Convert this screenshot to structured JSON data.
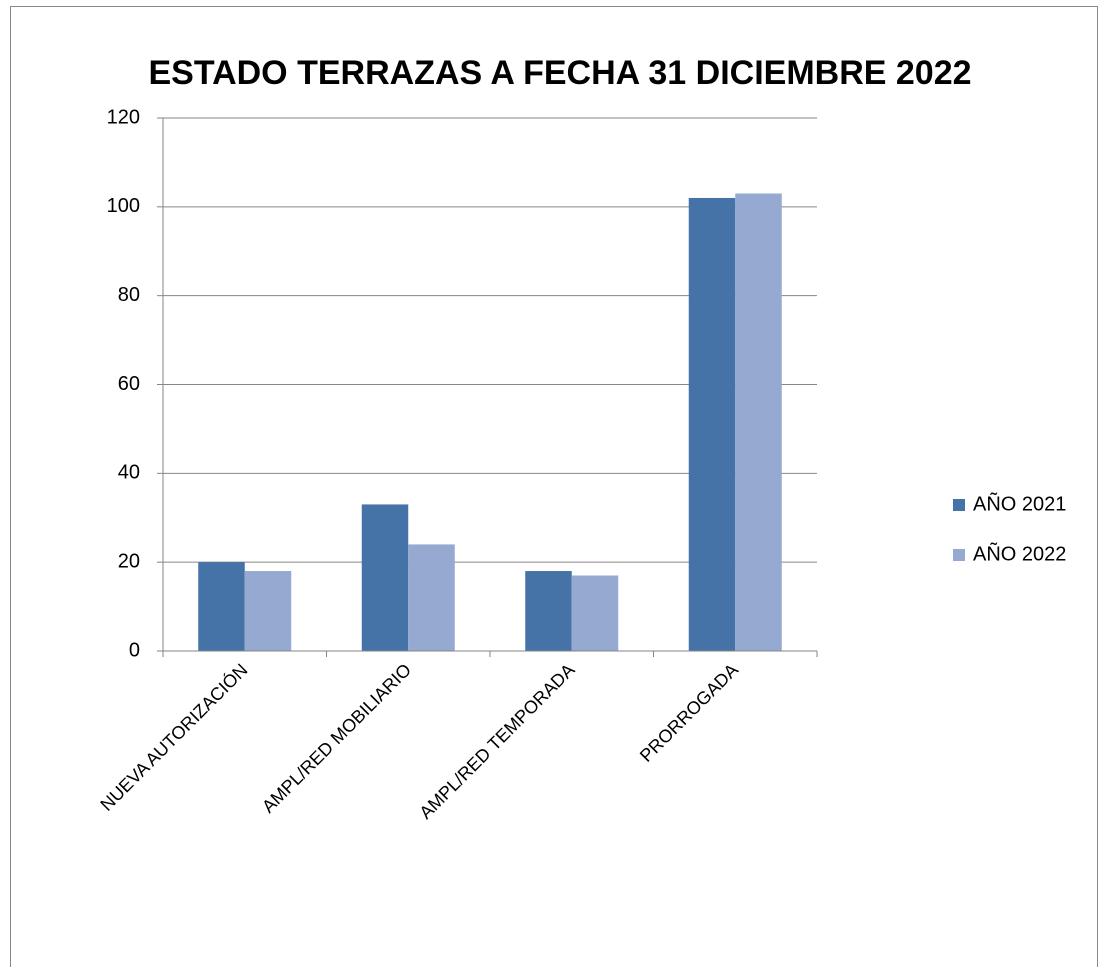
{
  "chart_data": {
    "type": "bar",
    "title": "ESTADO TERRAZAS A FECHA 31 DICIEMBRE 2022",
    "categories": [
      "NUEVA AUTORIZACIÓN",
      "AMPL/RED MOBILIARIO",
      "AMPL/RED TEMPORADA",
      "PRORROGADA"
    ],
    "series": [
      {
        "name": "AÑO 2021",
        "color": "#4572a7",
        "values": [
          20,
          33,
          18,
          102
        ]
      },
      {
        "name": "AÑO 2022",
        "color": "#95a9d1",
        "values": [
          18,
          24,
          17,
          103
        ]
      }
    ],
    "ylim": [
      0,
      120
    ],
    "yticks": [
      0,
      20,
      40,
      60,
      80,
      100,
      120
    ],
    "grid": true,
    "legend": "right"
  }
}
